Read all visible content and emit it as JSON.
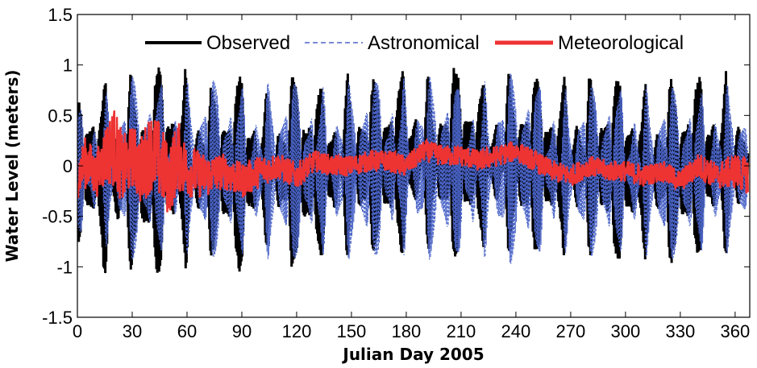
{
  "chart_data": {
    "type": "line",
    "title": "",
    "xlabel": "Julian Day 2005",
    "ylabel": "Water Level (meters)",
    "xlim": [
      0,
      368
    ],
    "ylim": [
      -1.5,
      1.5
    ],
    "x_ticks": [
      0,
      30,
      60,
      90,
      120,
      150,
      180,
      210,
      240,
      270,
      300,
      330,
      360
    ],
    "x_tick_labels": [
      "0",
      "30",
      "60",
      "90",
      "120",
      "150",
      "180",
      "210",
      "240",
      "270",
      "300",
      "330",
      "360"
    ],
    "y_ticks": [
      -1.5,
      -1,
      -0.5,
      0,
      0.5,
      1,
      1.5
    ],
    "y_tick_labels": [
      "-1.5",
      "-1",
      "-0.5",
      "0",
      "0.5",
      "1",
      "1.5"
    ],
    "grid": false,
    "legend_position": "top-center",
    "series": [
      {
        "name": "Observed",
        "color": "#000000",
        "style": "solid",
        "envelope_x": [
          0,
          10,
          15,
          30,
          40,
          45,
          60,
          75,
          90,
          105,
          120,
          135,
          150,
          165,
          180,
          195,
          210,
          225,
          240,
          255,
          270,
          285,
          300,
          315,
          330,
          345,
          360,
          367
        ],
        "envelope_max": [
          0.65,
          0.98,
          0.9,
          0.95,
          0.96,
          1.04,
          1.0,
          0.8,
          0.95,
          0.75,
          0.95,
          0.8,
          0.95,
          0.85,
          1.05,
          0.9,
          1.03,
          0.88,
          1.0,
          0.85,
          0.95,
          0.9,
          0.9,
          0.85,
          0.9,
          0.9,
          0.98,
          0.6
        ],
        "envelope_min": [
          -0.75,
          -1.0,
          -1.18,
          -1.05,
          -1.2,
          -1.05,
          -1.05,
          -0.9,
          -1.1,
          -0.8,
          -1.1,
          -0.9,
          -0.95,
          -0.85,
          -0.95,
          -0.85,
          -0.95,
          -0.8,
          -0.95,
          -0.85,
          -0.95,
          -0.9,
          -1.0,
          -0.95,
          -1.05,
          -0.9,
          -0.95,
          -0.65
        ]
      },
      {
        "name": "Astronomical",
        "color": "#4a64c8",
        "style": "dashed",
        "envelope_x": [
          0,
          30,
          60,
          90,
          120,
          150,
          180,
          210,
          240,
          270,
          300,
          330,
          360,
          367
        ],
        "envelope_max": [
          0.6,
          0.9,
          0.88,
          0.85,
          0.85,
          0.85,
          0.95,
          0.85,
          0.95,
          0.8,
          0.85,
          0.8,
          0.85,
          0.55
        ],
        "envelope_min": [
          -0.7,
          -0.95,
          -0.9,
          -0.95,
          -0.95,
          -0.95,
          -0.95,
          -0.95,
          -1.0,
          -0.9,
          -0.95,
          -0.95,
          -0.9,
          -0.6
        ]
      },
      {
        "name": "Meteorological",
        "color": "#ee3333",
        "style": "solid",
        "x": [
          0,
          5,
          10,
          15,
          20,
          25,
          30,
          35,
          40,
          45,
          50,
          55,
          60,
          70,
          80,
          90,
          100,
          110,
          120,
          130,
          140,
          150,
          160,
          170,
          180,
          190,
          200,
          210,
          220,
          230,
          240,
          250,
          260,
          270,
          280,
          290,
          300,
          310,
          320,
          330,
          340,
          350,
          360,
          367
        ],
        "y": [
          -0.1,
          0.05,
          -0.1,
          0.1,
          0.2,
          -0.05,
          0.1,
          -0.05,
          0.15,
          0.05,
          -0.15,
          0.1,
          -0.05,
          -0.1,
          -0.05,
          -0.15,
          -0.05,
          0.0,
          -0.1,
          0.05,
          0.0,
          0.0,
          0.05,
          0.05,
          0.0,
          0.15,
          0.1,
          0.1,
          0.05,
          0.1,
          0.15,
          0.05,
          -0.05,
          -0.1,
          0.0,
          -0.05,
          -0.05,
          -0.1,
          -0.05,
          -0.15,
          0.0,
          -0.1,
          -0.05,
          -0.1
        ],
        "band": [
          0.25,
          0.3,
          0.25,
          0.35,
          0.45,
          0.4,
          0.35,
          0.4,
          0.45,
          0.45,
          0.4,
          0.4,
          0.3,
          0.25,
          0.2,
          0.2,
          0.18,
          0.15,
          0.15,
          0.12,
          0.12,
          0.12,
          0.12,
          0.12,
          0.12,
          0.12,
          0.12,
          0.12,
          0.12,
          0.12,
          0.12,
          0.12,
          0.12,
          0.12,
          0.12,
          0.12,
          0.12,
          0.12,
          0.12,
          0.12,
          0.15,
          0.15,
          0.2,
          0.2
        ]
      }
    ]
  }
}
